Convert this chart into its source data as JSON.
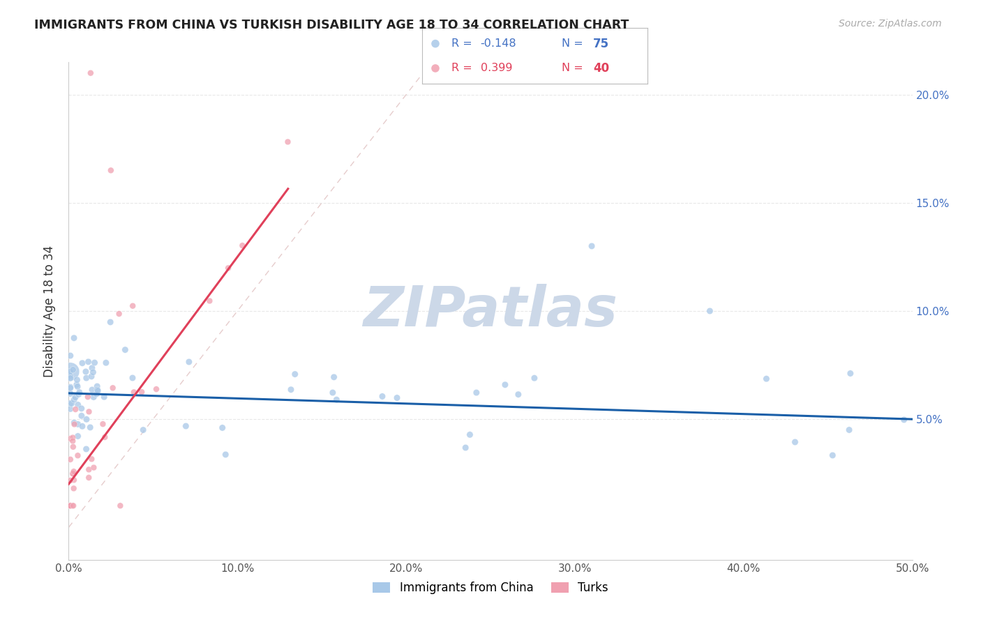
{
  "title": "IMMIGRANTS FROM CHINA VS TURKISH DISABILITY AGE 18 TO 34 CORRELATION CHART",
  "source": "Source: ZipAtlas.com",
  "ylabel": "Disability Age 18 to 34",
  "xmin": 0.0,
  "xmax": 0.5,
  "ymin": -0.015,
  "ymax": 0.215,
  "legend_R_china": "-0.148",
  "legend_N_china": "75",
  "legend_R_turks": "0.399",
  "legend_N_turks": "40",
  "china_color": "#a8c8e8",
  "turks_color": "#f0a0b0",
  "china_line_color": "#1a5fa8",
  "turks_line_color": "#e0405a",
  "diagonal_color": "#e0c0c0",
  "watermark_color": "#ccd8e8",
  "grid_color": "#e8e8e8",
  "china_line_intercept": 0.062,
  "china_line_slope": -0.024,
  "turks_line_intercept": 0.02,
  "turks_line_slope": 1.05,
  "turks_line_xmax": 0.13
}
